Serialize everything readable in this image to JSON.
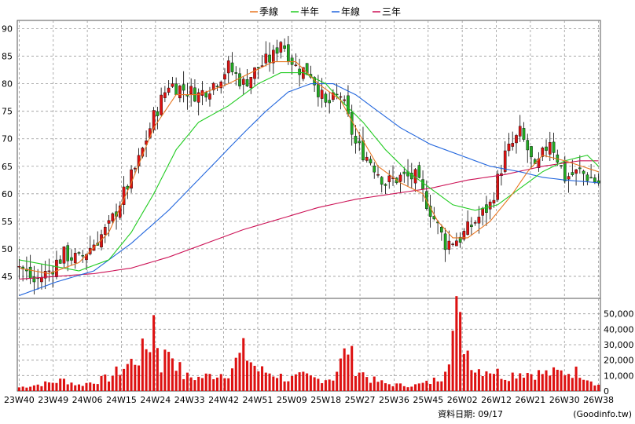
{
  "chart_data": {
    "type": "candlestick",
    "legend": {
      "placement": "top-center",
      "items": [
        {
          "name": "季線",
          "color": "#e87722"
        },
        {
          "name": "半年",
          "color": "#22cc22"
        },
        {
          "name": "年線",
          "color": "#2266dd"
        },
        {
          "name": "三年",
          "color": "#cc1155"
        }
      ]
    },
    "price_axis": {
      "ticks": [
        "90",
        "85",
        "80",
        "75",
        "70",
        "65",
        "60",
        "55",
        "50",
        "45"
      ],
      "ylim": [
        41,
        91.5
      ]
    },
    "volume_axis": {
      "ticks": [
        "50,000",
        "40,000",
        "30,000",
        "20,000",
        "10,000",
        "0"
      ],
      "ylim": [
        0,
        60000
      ]
    },
    "x_ticks": [
      "23W40",
      "23W49",
      "24W06",
      "24W15",
      "24W24",
      "24W33",
      "24W42",
      "24W51",
      "25W09",
      "25W18",
      "25W27",
      "25W36",
      "25W45",
      "26W02",
      "26W12",
      "26W21",
      "26W30",
      "26W38"
    ],
    "weeks": 156,
    "candle_color_up": "#dd1111",
    "candle_color_down": "#22aa22",
    "volume_color": "#dd1111",
    "anchors": {
      "close": [
        [
          0,
          47
        ],
        [
          4,
          44
        ],
        [
          8,
          46
        ],
        [
          12,
          49
        ],
        [
          16,
          48
        ],
        [
          20,
          51
        ],
        [
          24,
          54
        ],
        [
          28,
          60
        ],
        [
          32,
          66
        ],
        [
          36,
          74
        ],
        [
          40,
          80
        ],
        [
          44,
          79
        ],
        [
          48,
          78
        ],
        [
          52,
          80
        ],
        [
          56,
          83
        ],
        [
          60,
          80
        ],
        [
          64,
          83
        ],
        [
          68,
          85
        ],
        [
          70,
          88
        ],
        [
          74,
          83
        ],
        [
          78,
          82
        ],
        [
          82,
          76
        ],
        [
          86,
          78
        ],
        [
          90,
          69
        ],
        [
          94,
          66
        ],
        [
          98,
          62
        ],
        [
          102,
          63
        ],
        [
          106,
          63
        ],
        [
          110,
          57
        ],
        [
          114,
          51
        ],
        [
          118,
          52
        ],
        [
          122,
          55
        ],
        [
          126,
          58
        ],
        [
          130,
          67
        ],
        [
          134,
          71
        ],
        [
          136,
          68
        ],
        [
          138,
          64
        ],
        [
          142,
          70
        ],
        [
          146,
          63
        ],
        [
          150,
          64
        ],
        [
          155,
          62
        ]
      ],
      "volume": [
        [
          0,
          2500
        ],
        [
          4,
          4000
        ],
        [
          8,
          5500
        ],
        [
          12,
          7500
        ],
        [
          16,
          4000
        ],
        [
          20,
          6500
        ],
        [
          24,
          9000
        ],
        [
          28,
          16000
        ],
        [
          32,
          23000
        ],
        [
          35,
          33000
        ],
        [
          36,
          50000
        ],
        [
          38,
          17000
        ],
        [
          40,
          30000
        ],
        [
          44,
          10000
        ],
        [
          48,
          9000
        ],
        [
          52,
          11000
        ],
        [
          56,
          13000
        ],
        [
          60,
          27000
        ],
        [
          64,
          14000
        ],
        [
          68,
          12000
        ],
        [
          72,
          8000
        ],
        [
          76,
          10000
        ],
        [
          80,
          8000
        ],
        [
          84,
          9000
        ],
        [
          88,
          30000
        ],
        [
          90,
          16000
        ],
        [
          94,
          8000
        ],
        [
          98,
          5000
        ],
        [
          102,
          4000
        ],
        [
          106,
          4000
        ],
        [
          110,
          6000
        ],
        [
          113,
          10000
        ],
        [
          115,
          28000
        ],
        [
          117,
          52000
        ],
        [
          119,
          34000
        ],
        [
          122,
          15000
        ],
        [
          126,
          15000
        ],
        [
          130,
          10000
        ],
        [
          134,
          13000
        ],
        [
          138,
          12000
        ],
        [
          142,
          12000
        ],
        [
          146,
          13000
        ],
        [
          150,
          13000
        ],
        [
          155,
          4000
        ]
      ]
    },
    "ma_quarter": [
      [
        0,
        46.5
      ],
      [
        8,
        45.5
      ],
      [
        16,
        47.5
      ],
      [
        24,
        53
      ],
      [
        30,
        62
      ],
      [
        36,
        72
      ],
      [
        42,
        78
      ],
      [
        48,
        78
      ],
      [
        56,
        80
      ],
      [
        62,
        82
      ],
      [
        68,
        84
      ],
      [
        74,
        84
      ],
      [
        80,
        80
      ],
      [
        86,
        77
      ],
      [
        90,
        72
      ],
      [
        96,
        65
      ],
      [
        102,
        62
      ],
      [
        108,
        60
      ],
      [
        112,
        55
      ],
      [
        116,
        52
      ],
      [
        120,
        52
      ],
      [
        126,
        55
      ],
      [
        132,
        60
      ],
      [
        136,
        64
      ],
      [
        140,
        67
      ],
      [
        146,
        66
      ],
      [
        155,
        64
      ]
    ],
    "ma_half": [
      [
        0,
        48
      ],
      [
        8,
        47
      ],
      [
        16,
        46
      ],
      [
        24,
        48
      ],
      [
        30,
        53
      ],
      [
        36,
        60
      ],
      [
        42,
        68
      ],
      [
        48,
        73
      ],
      [
        56,
        76
      ],
      [
        64,
        80
      ],
      [
        70,
        82
      ],
      [
        76,
        82
      ],
      [
        82,
        80
      ],
      [
        86,
        77
      ],
      [
        92,
        73
      ],
      [
        98,
        68
      ],
      [
        104,
        64
      ],
      [
        110,
        61
      ],
      [
        116,
        58
      ],
      [
        122,
        57
      ],
      [
        128,
        58
      ],
      [
        134,
        61
      ],
      [
        140,
        64
      ],
      [
        146,
        66
      ],
      [
        152,
        67
      ],
      [
        155,
        65
      ]
    ],
    "ma_year": [
      [
        0,
        41.5
      ],
      [
        10,
        44
      ],
      [
        20,
        46
      ],
      [
        30,
        51
      ],
      [
        40,
        57
      ],
      [
        50,
        64
      ],
      [
        60,
        71
      ],
      [
        66,
        75
      ],
      [
        72,
        78.5
      ],
      [
        78,
        80
      ],
      [
        84,
        80
      ],
      [
        90,
        78
      ],
      [
        96,
        75
      ],
      [
        102,
        72
      ],
      [
        110,
        69
      ],
      [
        118,
        67
      ],
      [
        126,
        65
      ],
      [
        134,
        64
      ],
      [
        140,
        63
      ],
      [
        146,
        62.5
      ],
      [
        155,
        62
      ]
    ],
    "ma_three_year": [
      [
        0,
        44.5
      ],
      [
        10,
        45
      ],
      [
        20,
        45.5
      ],
      [
        30,
        46.5
      ],
      [
        40,
        48.5
      ],
      [
        50,
        51
      ],
      [
        60,
        53.5
      ],
      [
        70,
        55.5
      ],
      [
        80,
        57.5
      ],
      [
        90,
        59
      ],
      [
        100,
        60
      ],
      [
        110,
        61
      ],
      [
        120,
        62.5
      ],
      [
        130,
        63.5
      ],
      [
        140,
        65
      ],
      [
        150,
        66
      ],
      [
        155,
        66
      ]
    ]
  },
  "footer": {
    "date_label": "資料日期: 09/17",
    "source": "(Goodinfo.tw)"
  }
}
